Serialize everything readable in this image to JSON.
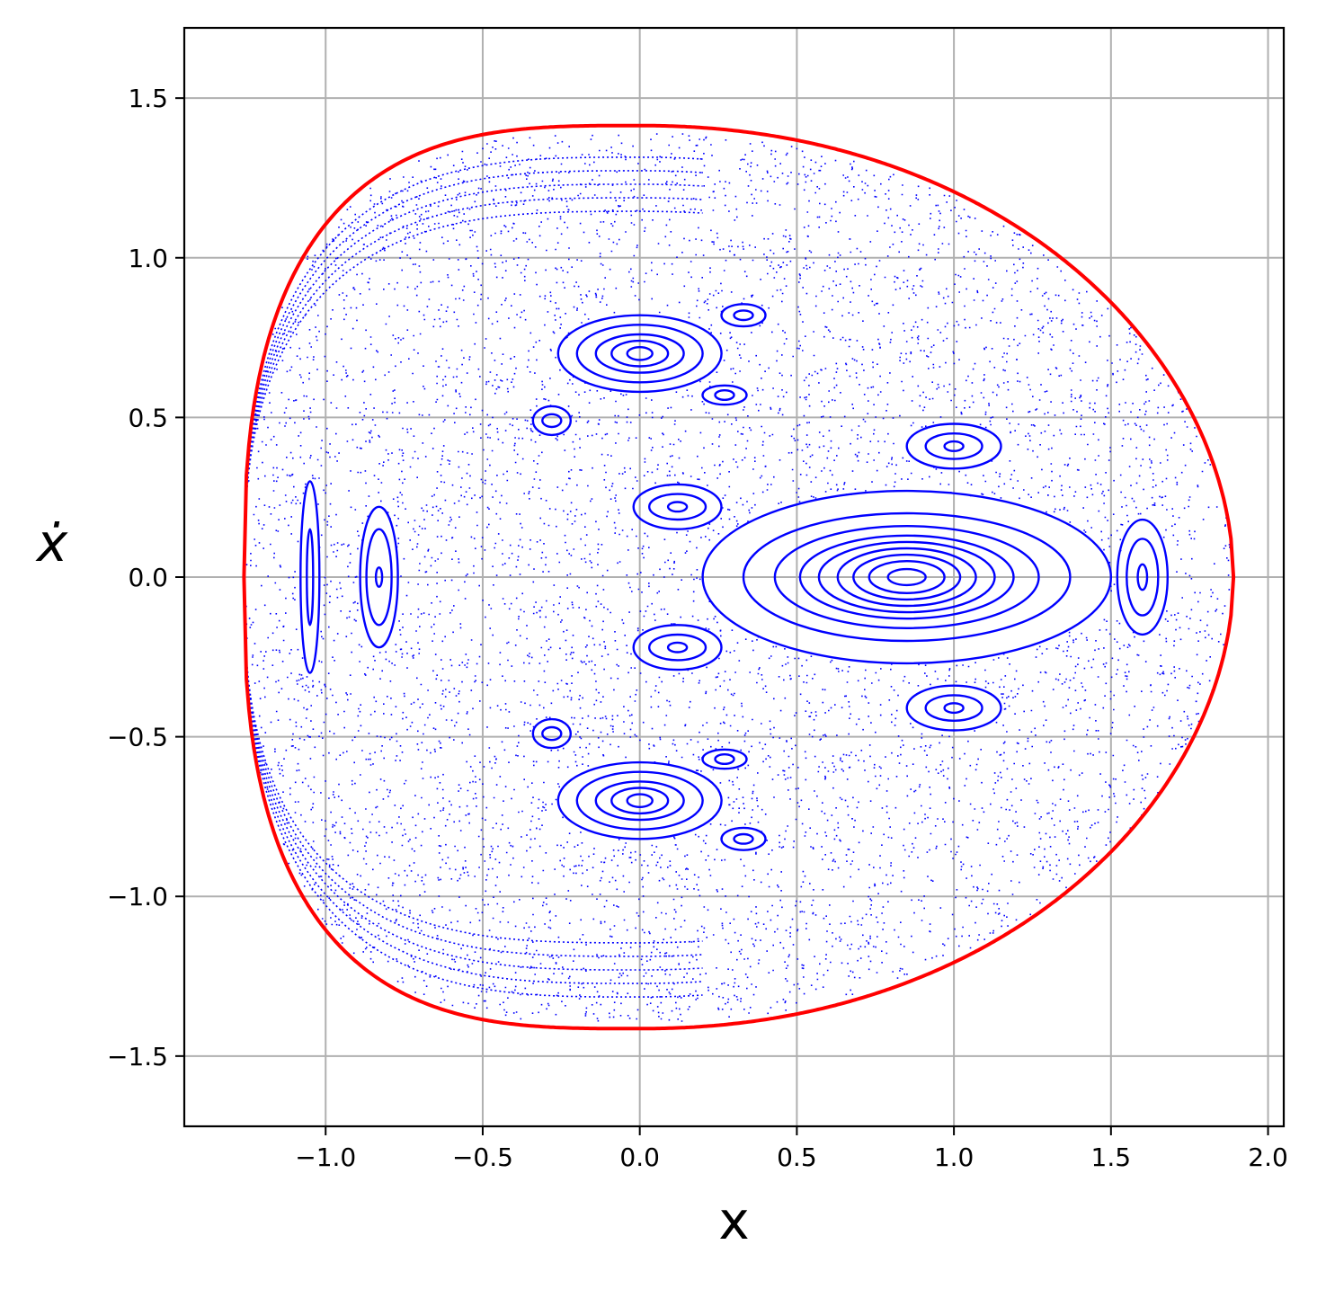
{
  "chart_data": {
    "type": "scatter",
    "title": "",
    "xlabel": "x",
    "ylabel": "ẋ",
    "xlim": [
      -1.45,
      2.05
    ],
    "ylim": [
      -1.72,
      1.72
    ],
    "grid": true,
    "x_ticks": [
      -1.0,
      -0.5,
      0.0,
      0.5,
      1.0,
      1.5,
      2.0
    ],
    "x_tick_labels": [
      "−1.0",
      "−0.5",
      "0.0",
      "0.5",
      "1.0",
      "1.5",
      "2.0"
    ],
    "y_ticks": [
      1.5,
      1.0,
      0.5,
      0.0,
      -0.5,
      -1.0,
      -1.5
    ],
    "y_tick_labels": [
      "1.5",
      "1.0",
      "0.5",
      "0.0",
      "−0.5",
      "−1.0",
      "−1.5"
    ],
    "colors": {
      "points": "#0000ff",
      "boundary": "#ff0000",
      "grid": "#b0b0b0",
      "axes": "#000000"
    },
    "boundary": {
      "description_shape": "energy boundary curve",
      "x_min": -1.26,
      "x_max": 1.89,
      "y_max": 1.414,
      "y_min": -1.414,
      "x_at_y_max": 0.0
    },
    "islands": [
      {
        "center": [
          0.85,
          0.0
        ],
        "rx": [
          0.06,
          0.12,
          0.17,
          0.22,
          0.28,
          0.34,
          0.42,
          0.52,
          0.65
        ],
        "ry": [
          0.025,
          0.05,
          0.07,
          0.09,
          0.11,
          0.13,
          0.16,
          0.2,
          0.27
        ]
      },
      {
        "center": [
          0.0,
          0.7
        ],
        "rx": [
          0.04,
          0.09,
          0.14,
          0.2,
          0.26
        ],
        "ry": [
          0.02,
          0.04,
          0.06,
          0.09,
          0.12
        ]
      },
      {
        "center": [
          0.0,
          -0.7
        ],
        "rx": [
          0.04,
          0.09,
          0.14,
          0.2,
          0.26
        ],
        "ry": [
          0.02,
          0.04,
          0.06,
          0.09,
          0.12
        ]
      },
      {
        "center": [
          1.0,
          0.41
        ],
        "rx": [
          0.03,
          0.09,
          0.15
        ],
        "ry": [
          0.015,
          0.04,
          0.07
        ]
      },
      {
        "center": [
          1.0,
          -0.41
        ],
        "rx": [
          0.03,
          0.09,
          0.15
        ],
        "ry": [
          0.015,
          0.04,
          0.07
        ]
      },
      {
        "center": [
          0.12,
          0.22
        ],
        "rx": [
          0.03,
          0.09,
          0.14
        ],
        "ry": [
          0.015,
          0.04,
          0.07
        ]
      },
      {
        "center": [
          0.12,
          -0.22
        ],
        "rx": [
          0.03,
          0.09,
          0.14
        ],
        "ry": [
          0.015,
          0.04,
          0.07
        ]
      },
      {
        "center": [
          1.6,
          0.0
        ],
        "rx": [
          0.015,
          0.05,
          0.08
        ],
        "ry": [
          0.04,
          0.12,
          0.18
        ]
      },
      {
        "center": [
          -0.83,
          0.0
        ],
        "rx": [
          0.01,
          0.04,
          0.06
        ],
        "ry": [
          0.03,
          0.15,
          0.22
        ]
      },
      {
        "center": [
          -1.05,
          0.0
        ],
        "rx": [
          0.01,
          0.03
        ],
        "ry": [
          0.15,
          0.3
        ]
      },
      {
        "center": [
          0.33,
          0.82
        ],
        "rx": [
          0.03,
          0.07
        ],
        "ry": [
          0.015,
          0.035
        ]
      },
      {
        "center": [
          0.33,
          -0.82
        ],
        "rx": [
          0.03,
          0.07
        ],
        "ry": [
          0.015,
          0.035
        ]
      },
      {
        "center": [
          0.27,
          0.57
        ],
        "rx": [
          0.03,
          0.07
        ],
        "ry": [
          0.015,
          0.03
        ]
      },
      {
        "center": [
          0.27,
          -0.57
        ],
        "rx": [
          0.03,
          0.07
        ],
        "ry": [
          0.015,
          0.03
        ]
      },
      {
        "center": [
          -0.28,
          0.49
        ],
        "rx": [
          0.03,
          0.06
        ],
        "ry": [
          0.02,
          0.045
        ]
      },
      {
        "center": [
          -0.28,
          -0.49
        ],
        "rx": [
          0.03,
          0.06
        ],
        "ry": [
          0.02,
          0.045
        ]
      }
    ]
  }
}
